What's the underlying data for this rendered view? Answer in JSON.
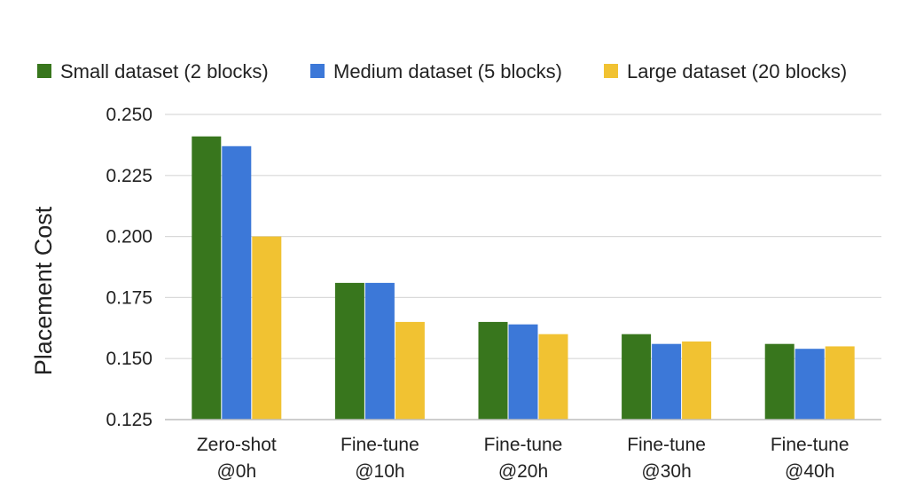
{
  "chart_data": {
    "type": "bar",
    "title": "",
    "xlabel": "",
    "ylabel": "Placement Cost",
    "ylim": [
      0.125,
      0.25
    ],
    "yticks": [
      "0.125",
      "0.150",
      "0.175",
      "0.200",
      "0.225",
      "0.250"
    ],
    "ytick_values": [
      0.125,
      0.15,
      0.175,
      0.2,
      0.225,
      0.25
    ],
    "grid": true,
    "legend_position": "top",
    "categories": [
      [
        "Zero-shot",
        "@0h"
      ],
      [
        "Fine-tune",
        "@10h"
      ],
      [
        "Fine-tune",
        "@20h"
      ],
      [
        "Fine-tune",
        "@30h"
      ],
      [
        "Fine-tune",
        "@40h"
      ]
    ],
    "series": [
      {
        "name": "Small dataset (2 blocks)",
        "color": "#38761d",
        "values": [
          0.241,
          0.181,
          0.165,
          0.16,
          0.156
        ]
      },
      {
        "name": "Medium dataset (5 blocks)",
        "color": "#3c78d8",
        "values": [
          0.237,
          0.181,
          0.164,
          0.156,
          0.154
        ]
      },
      {
        "name": "Large dataset (20 blocks)",
        "color": "#f1c232",
        "values": [
          0.2,
          0.165,
          0.16,
          0.157,
          0.155
        ]
      }
    ]
  }
}
